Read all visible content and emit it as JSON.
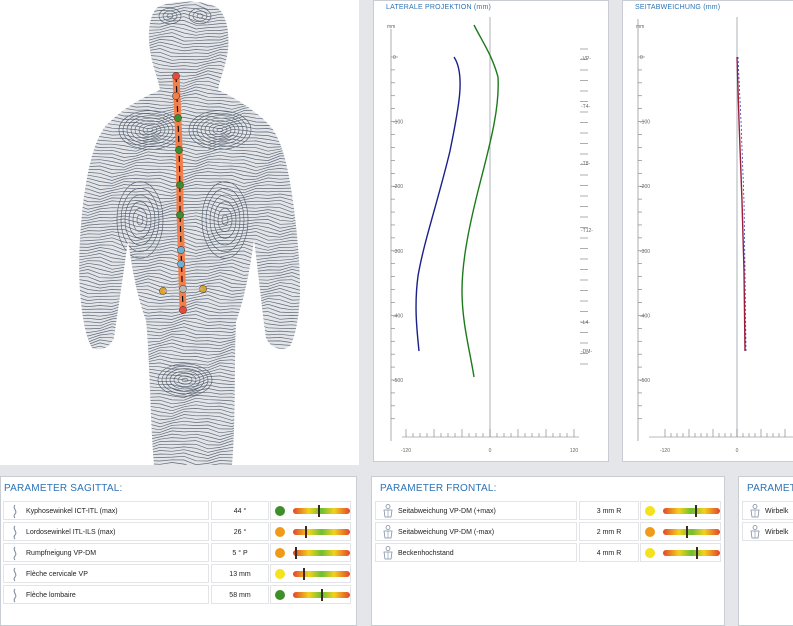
{
  "panels": {
    "lateral_title": "LATERALE PROJEKTION (mm)",
    "deviation_title": "SEITABWEICHUNG (mm)"
  },
  "lateral_axis": {
    "unit": "mm",
    "y_ticks": [
      "0",
      "-100",
      "-200",
      "-300",
      "-400",
      "-500"
    ],
    "x_ticks": [
      "-120",
      "0",
      "120"
    ],
    "vertebra_labels": [
      "-VP-",
      "-T4-",
      "-T8-",
      "-T12-",
      "-L4-",
      "-DM-"
    ]
  },
  "deviation_axis": {
    "unit": "mm",
    "y_ticks": [
      "0",
      "-100",
      "-200",
      "-300",
      "-400",
      "-500"
    ],
    "x_ticks": [
      "-120",
      "0"
    ]
  },
  "sagittal": {
    "title": "PARAMETER SAGITTAL:",
    "rows": [
      {
        "label": "Kyphosewinkel ICT-ITL (max)",
        "value": "44 °",
        "dot": "#3d8f2a",
        "mark": 0.46,
        "icon": "spine-icon"
      },
      {
        "label": "Lordosewinkel ITL-ILS (max)",
        "value": "26 °",
        "dot": "#f09a1a",
        "mark": 0.22,
        "icon": "spine-icon"
      },
      {
        "label": "Rumpfneigung VP-DM",
        "value": "5 ° P",
        "dot": "#f09a1a",
        "mark": 0.05,
        "icon": "spine-icon"
      },
      {
        "label": "Flèche cervicale VP",
        "value": "13 mm",
        "dot": "#f3e21c",
        "mark": 0.2,
        "icon": "spine-icon"
      },
      {
        "label": "Flèche lombaire",
        "value": "58 mm",
        "dot": "#3d8f2a",
        "mark": 0.5,
        "icon": "spine-icon"
      }
    ]
  },
  "frontal": {
    "title": "PARAMETER FRONTAL:",
    "rows": [
      {
        "label": "Seitabweichung VP-DM (+max)",
        "value": "3 mm R",
        "dot": "#f3e21c",
        "mark": 0.58,
        "icon": "torso-icon"
      },
      {
        "label": "Seitabweichung VP-DM (-max)",
        "value": "2 mm R",
        "dot": "#f09a1a",
        "mark": 0.42,
        "icon": "torso-icon"
      },
      {
        "label": "Beckenhochstand",
        "value": "4 mm R",
        "dot": "#f3e21c",
        "mark": 0.6,
        "icon": "torso-icon"
      }
    ]
  },
  "third": {
    "title": "PARAMETER",
    "rows": [
      {
        "label": "Wirbelk",
        "icon": "torso-icon"
      },
      {
        "label": "Wirbelk",
        "icon": "torso-icon"
      }
    ]
  }
}
